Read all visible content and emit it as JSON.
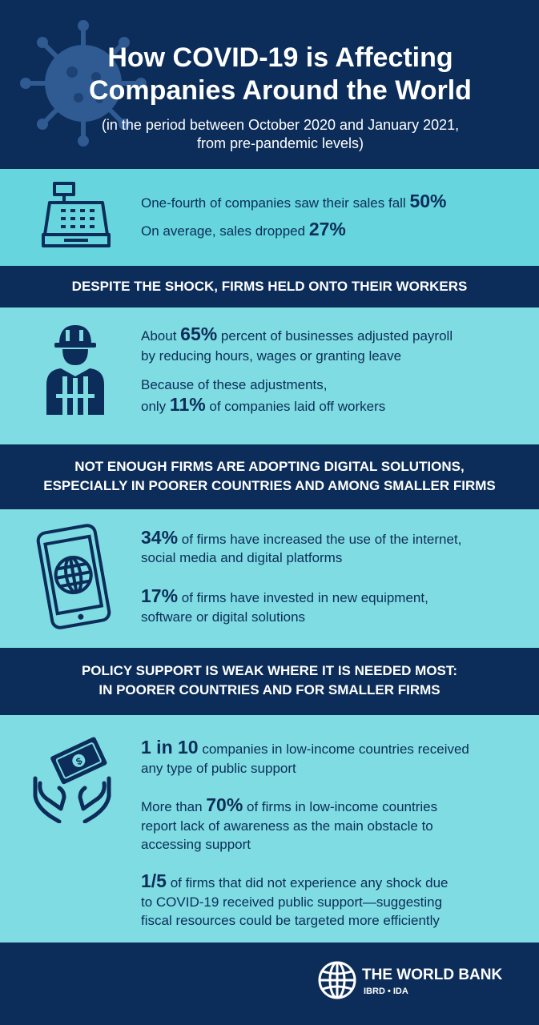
{
  "header": {
    "title_line1": "How COVID-19 is Affecting",
    "title_line2": "Companies Around the World",
    "subtitle_line1": "(in the period between October 2020 and January 2021,",
    "subtitle_line2": "from pre-pandemic levels)"
  },
  "sales": {
    "line1_text": "One-fourth of companies saw their sales fall ",
    "line1_value": "50%",
    "line2_text": "On average, sales dropped ",
    "line2_value": "27%"
  },
  "workers": {
    "heading": "DESPITE THE SHOCK, FIRMS HELD ONTO THEIR WORKERS",
    "stat1_prefix": "About ",
    "stat1_value": "65%",
    "stat1_suffix": " percent of businesses adjusted payroll",
    "stat1_line2": "by reducing hours, wages or granting leave",
    "stat2_line1": "Because of these adjustments,",
    "stat2_prefix": "only ",
    "stat2_value": "11%",
    "stat2_suffix": " of companies laid off workers"
  },
  "digital": {
    "heading_line1": "NOT ENOUGH FIRMS ARE ADOPTING DIGITAL SOLUTIONS,",
    "heading_line2": "ESPECIALLY IN POORER COUNTRIES AND AMONG SMALLER FIRMS",
    "stat1_value": "34%",
    "stat1_suffix": " of firms have increased the use of the internet,",
    "stat1_line2": "social media and digital platforms",
    "stat2_value": "17%",
    "stat2_suffix": " of firms have invested in new equipment,",
    "stat2_line2": "software or digital solutions"
  },
  "policy": {
    "heading_line1": "POLICY SUPPORT IS WEAK WHERE IT IS NEEDED MOST:",
    "heading_line2": "IN POORER COUNTRIES AND FOR SMALLER FIRMS",
    "stat1_value": "1 in 10",
    "stat1_suffix": " companies in low-income countries received",
    "stat1_line2": "any type of public support",
    "stat2_prefix": "More than ",
    "stat2_value": "70%",
    "stat2_suffix": " of firms in low-income countries",
    "stat2_line2": "report lack of awareness as the main obstacle to",
    "stat2_line3": "accessing support",
    "stat3_value": "1/5",
    "stat3_suffix": " of firms that did not experience any shock due",
    "stat3_line2": "to COVID-19 received public support—suggesting",
    "stat3_line3": "fiscal resources could be targeted more efficiently"
  },
  "footer": {
    "logo_name": "THE WORLD BANK",
    "logo_sub": "IBRD • IDA"
  },
  "colors": {
    "navy": "#0c2d59",
    "aqua": "#7fdce2",
    "aqua_dark": "#66d5dd",
    "virus": "#2f5a92"
  },
  "icons": [
    "virus-icon",
    "cash-register-icon",
    "worker-icon",
    "smartphone-globe-icon",
    "hands-money-icon",
    "world-bank-globe-icon"
  ]
}
